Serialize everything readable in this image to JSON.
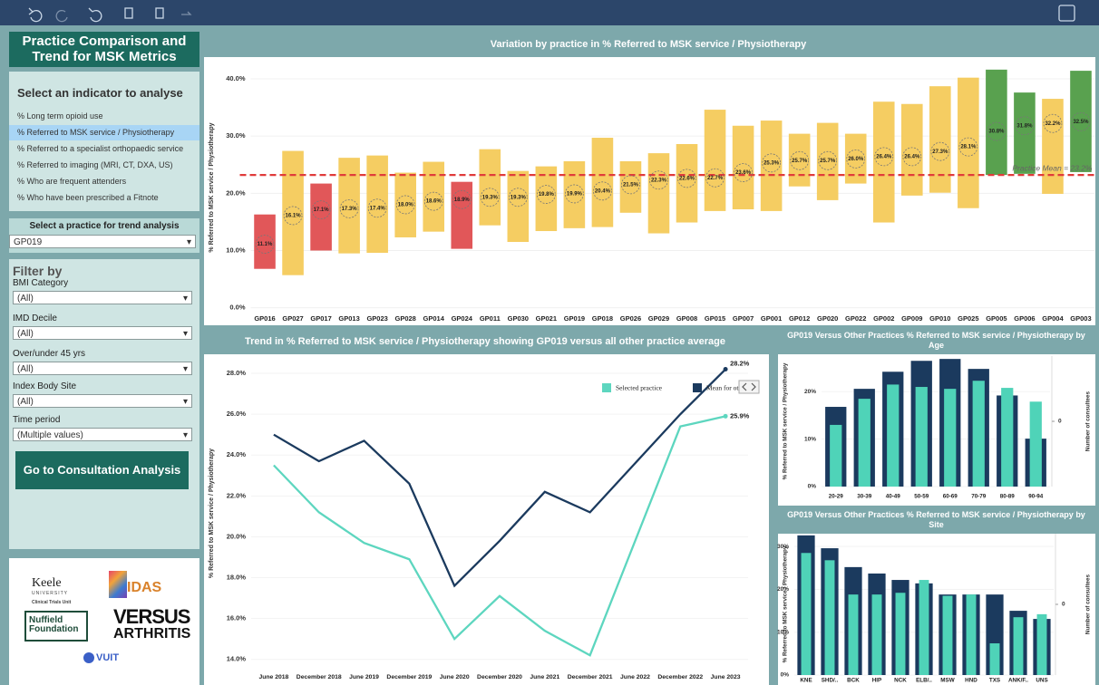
{
  "sidebar": {
    "title": "Practice Comparison and Trend for MSK Metrics",
    "indicator_heading": "Select an indicator to analyse",
    "indicators": [
      "% Long term opioid use",
      "% Referred to MSK service / Physiotherapy",
      "% Referred to a specialist  orthopaedic service",
      "% Referred to imaging (MRI, CT, DXA, US)",
      "% Who are frequent attenders",
      "% Who have been prescribed a Fitnote"
    ],
    "selected_indicator": 1,
    "practice_heading": "Select a practice for trend analysis",
    "practice_value": "GP019",
    "filter_heading": "Filter by",
    "filters": [
      {
        "label": "BMI Category",
        "value": "(All)"
      },
      {
        "label": "IMD Decile",
        "value": "(All)"
      },
      {
        "label": "Over/under 45 yrs",
        "value": "(All)"
      },
      {
        "label": "Index Body Site",
        "value": "(All)"
      },
      {
        "label": "Time period",
        "value": "(Multiple values)"
      }
    ],
    "button": "Go to Consultation Analysis"
  },
  "logos": [
    "Keele",
    "UNIVERSITY",
    "Clinical Trials Unit",
    "IDAS",
    "Nuffield",
    "Foundation",
    "VERSUS",
    "ARTHRITIS",
    "VUIT"
  ],
  "chart_data": [
    {
      "type": "range",
      "title": "Variation by practice in % Referred to MSK service / Physiotherapy",
      "y_label": "% Referred to MSK service / Physiotherapy",
      "categories": [
        "GP016",
        "GP027",
        "GP017",
        "GP013",
        "GP023",
        "GP028",
        "GP014",
        "GP024",
        "GP011",
        "GP030",
        "GP021",
        "GP019",
        "GP018",
        "GP026",
        "GP029",
        "GP008",
        "GP015",
        "GP007",
        "GP001",
        "GP012",
        "GP020",
        "GP022",
        "GP002",
        "GP009",
        "GP010",
        "GP025",
        "GP005",
        "GP006",
        "GP004",
        "GP003"
      ],
      "lows": [
        6.8,
        5.7,
        10.0,
        9.5,
        9.6,
        12.3,
        13.3,
        10.3,
        14.4,
        11.5,
        13.4,
        13.9,
        14.1,
        16.6,
        13.0,
        14.9,
        16.9,
        17.2,
        16.9,
        21.2,
        18.8,
        21.7,
        14.9,
        19.6,
        20.1,
        17.4,
        23.2,
        23.4,
        19.9,
        23.7
      ],
      "highs": [
        16.3,
        27.4,
        21.7,
        26.2,
        26.6,
        23.6,
        25.5,
        22.0,
        27.7,
        23.9,
        24.7,
        25.6,
        29.7,
        25.6,
        27.0,
        28.6,
        34.6,
        31.8,
        32.7,
        30.4,
        32.3,
        30.4,
        36.0,
        35.6,
        38.7,
        40.2,
        41.6,
        37.6,
        36.5,
        41.4
      ],
      "values": [
        11.1,
        16.1,
        17.1,
        17.3,
        17.4,
        18.0,
        18.6,
        18.9,
        19.3,
        19.3,
        19.8,
        19.9,
        20.4,
        21.5,
        22.3,
        22.6,
        22.7,
        23.6,
        25.3,
        25.7,
        25.7,
        26.0,
        26.4,
        26.4,
        27.3,
        28.1,
        30.8,
        31.8,
        32.2,
        32.5
      ],
      "value_labels": [
        "11.1%",
        "16.1%",
        "17.1%",
        "17.3%",
        "17.4%",
        "18.0%",
        "18.6%",
        "18.9%",
        "19.3%",
        "19.3%",
        "19.8%",
        "19.9%",
        "20.4%",
        "21.5%",
        "22.3%",
        "22.6%",
        "22.7%",
        "23.6%",
        "25.3%",
        "25.7%",
        "25.7%",
        "26.0%",
        "26.4%",
        "26.4%",
        "27.3%",
        "28.1%",
        "30.8%",
        "31.8%",
        "32.2%",
        "32.5%"
      ],
      "colors": [
        "#e15759",
        "#f5cd62",
        "#e15759",
        "#f5cd62",
        "#f5cd62",
        "#f5cd62",
        "#f5cd62",
        "#e15759",
        "#f5cd62",
        "#f5cd62",
        "#f5cd62",
        "#f5cd62",
        "#f5cd62",
        "#f5cd62",
        "#f5cd62",
        "#f5cd62",
        "#f5cd62",
        "#f5cd62",
        "#f5cd62",
        "#f5cd62",
        "#f5cd62",
        "#f5cd62",
        "#f5cd62",
        "#f5cd62",
        "#f5cd62",
        "#f5cd62",
        "#59a14f",
        "#59a14f",
        "#f5cd62",
        "#59a14f"
      ],
      "ylim": [
        -1,
        43
      ],
      "yticks": [
        {
          "value": 0,
          "label": "0.0%"
        },
        {
          "value": 10,
          "label": "10.0%"
        },
        {
          "value": 20,
          "label": "20.0%"
        },
        {
          "value": 30,
          "label": "30.0%"
        },
        {
          "value": 40,
          "label": "40.0%"
        }
      ],
      "mean": 23.2,
      "mean_label": "Practice Mean = 23.2%",
      "mean_color": "#e03b3b",
      "grid": true
    },
    {
      "type": "line",
      "title": "Trend in % Referred to MSK service / Physiotherapy showing GP019 versus all other practice average",
      "y_label": "% Referred to MSK service / Physiotherapy",
      "categories": [
        "June 2018",
        "December 2018",
        "June 2019",
        "December 2019",
        "June 2020",
        "December 2020",
        "June 2021",
        "December 2021",
        "June 2022",
        "December 2022",
        "June 2023"
      ],
      "series": [
        {
          "name": "Selected practice",
          "color": "#5dd6bf",
          "values": [
            23.5,
            21.2,
            19.7,
            18.9,
            15.0,
            17.1,
            15.4,
            14.2,
            19.8,
            25.4,
            25.9
          ],
          "value_labels": [
            null,
            null,
            null,
            null,
            null,
            null,
            null,
            null,
            null,
            null,
            "25.9%"
          ]
        },
        {
          "name": "Mean for oth",
          "color": "#1b3a5e",
          "values": [
            25.0,
            23.7,
            24.7,
            22.6,
            17.6,
            19.8,
            22.2,
            21.2,
            23.6,
            26.0,
            28.2
          ],
          "value_labels": [
            null,
            null,
            null,
            null,
            null,
            null,
            null,
            null,
            null,
            null,
            "28.2%"
          ]
        }
      ],
      "ylim": [
        13.5,
        28.8
      ],
      "yticks": [
        {
          "value": 14,
          "label": "14.0%"
        },
        {
          "value": 16,
          "label": "16.0%"
        },
        {
          "value": 18,
          "label": "18.0%"
        },
        {
          "value": 20,
          "label": "20.0%"
        },
        {
          "value": 22,
          "label": "22.0%"
        },
        {
          "value": 24,
          "label": "24.0%"
        },
        {
          "value": 26,
          "label": "26.0%"
        },
        {
          "value": 28,
          "label": "28.0%"
        }
      ]
    },
    {
      "type": "bar",
      "title": "GP019 Versus Other Practices % Referred to MSK service / Physiotherapy by Age",
      "y_label": "% Referred to MSK service / Physiotherapy",
      "y2_label": "Number of consultees",
      "categories": [
        "20-29",
        "30-39",
        "40-49",
        "50-59",
        "60-69",
        "70-79",
        "80-89",
        "90-94"
      ],
      "series": [
        {
          "color": "#1b3a5e",
          "values": [
            16.8,
            20.6,
            24.2,
            26.5,
            26.9,
            24.8,
            19.2,
            10.1
          ]
        },
        {
          "color": "#4fd3b8",
          "values": [
            13.0,
            18.5,
            21.5,
            21.0,
            20.6,
            22.3,
            20.8,
            17.9
          ]
        }
      ],
      "ylim": [
        0,
        27.5
      ],
      "yticks": [
        {
          "value": 0,
          "label": "0%"
        },
        {
          "value": 10,
          "label": "10%"
        },
        {
          "value": 20,
          "label": "20%"
        }
      ],
      "y2lim": [
        -1,
        1
      ],
      "y2ticks": [
        0
      ]
    },
    {
      "type": "bar",
      "title": "GP019 Versus Other Practices % Referred to MSK service / Physiotherapy by Site",
      "y_label": "% Referred to MSK service / Physiotherapy",
      "y2_label": "Number of consultees",
      "categories": [
        "KNE",
        "SHD/..",
        "BCK",
        "HIP",
        "NCK",
        "ELB/..",
        "MSW",
        "HND",
        "TXS",
        "ANK/F..",
        "UNS"
      ],
      "series": [
        {
          "color": "#1b3a5e",
          "values": [
            32.6,
            29.6,
            25.2,
            23.7,
            22.2,
            21.4,
            18.8,
            18.8,
            18.8,
            15.0,
            13.1
          ]
        },
        {
          "color": "#4fd3b8",
          "values": [
            28.5,
            26.8,
            18.8,
            18.8,
            19.2,
            22.2,
            18.5,
            18.8,
            7.4,
            13.5,
            14.2
          ]
        }
      ],
      "ylim": [
        0,
        33
      ],
      "yticks": [
        {
          "value": 0,
          "label": "0%"
        },
        {
          "value": 10,
          "label": "10%"
        },
        {
          "value": 20,
          "label": "20%"
        },
        {
          "value": 30,
          "label": "30%"
        }
      ],
      "y2lim": [
        -1,
        1
      ],
      "y2ticks": [
        0
      ]
    }
  ]
}
